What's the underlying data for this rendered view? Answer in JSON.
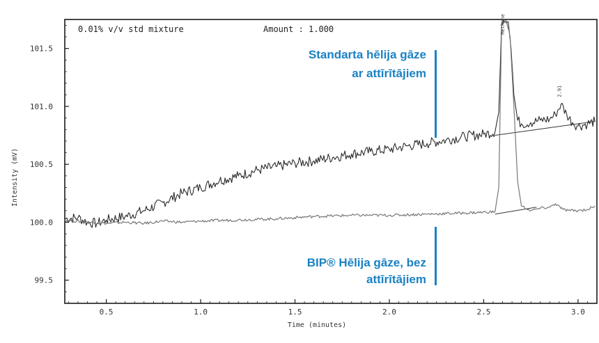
{
  "chart_data": {
    "type": "line",
    "title": "0.01% v/v std mixture",
    "amount_label": "Amount : 1.000",
    "xlabel": "Time (minutes)",
    "ylabel": "Intensity (mV)",
    "xlim": [
      0.28,
      3.1
    ],
    "ylim": [
      99.3,
      101.75
    ],
    "x_ticks": [
      {
        "value": 0.5,
        "label": "0.5"
      },
      {
        "value": 1.0,
        "label": "1.0"
      },
      {
        "value": 1.5,
        "label": "1.5"
      },
      {
        "value": 2.0,
        "label": "2.0"
      },
      {
        "value": 2.5,
        "label": "2.5"
      },
      {
        "value": 3.0,
        "label": "3.0"
      }
    ],
    "y_ticks": [
      {
        "value": 99.5,
        "label": "99.5"
      },
      {
        "value": 100.0,
        "label": "100.0"
      },
      {
        "value": 100.5,
        "label": "100.5"
      },
      {
        "value": 101.0,
        "label": "101.0"
      },
      {
        "value": 101.5,
        "label": "101.5"
      }
    ],
    "peak_labels": [
      {
        "label": "Methane",
        "x": 2.61,
        "y": 101.62
      },
      {
        "label": "2.91",
        "x": 2.91,
        "y": 101.08
      }
    ],
    "series": [
      {
        "name": "Standarta hēlija gāze ar attīrītājiem",
        "color": "#2a2a2a",
        "x": [
          0.28,
          0.35,
          0.4,
          0.45,
          0.5,
          0.6,
          0.7,
          0.8,
          0.9,
          1.0,
          1.1,
          1.2,
          1.3,
          1.4,
          1.5,
          1.6,
          1.7,
          1.8,
          1.9,
          2.0,
          2.1,
          2.2,
          2.3,
          2.4,
          2.5,
          2.56,
          2.58,
          2.595,
          2.605,
          2.62,
          2.63,
          2.645,
          2.66,
          2.68,
          2.7,
          2.75,
          2.8,
          2.85,
          2.88,
          2.91,
          2.94,
          2.97,
          3.0,
          3.05,
          3.09
        ],
        "y": [
          100.03,
          100.04,
          100.0,
          99.99,
          100.02,
          100.05,
          100.1,
          100.17,
          100.25,
          100.3,
          100.36,
          100.4,
          100.45,
          100.48,
          100.51,
          100.53,
          100.56,
          100.59,
          100.61,
          100.63,
          100.66,
          100.68,
          100.71,
          100.74,
          100.76,
          100.78,
          100.95,
          101.72,
          101.74,
          101.72,
          101.73,
          101.5,
          101.1,
          100.88,
          100.85,
          100.86,
          100.88,
          100.89,
          100.93,
          101.02,
          100.93,
          100.86,
          100.83,
          100.85,
          100.87
        ]
      },
      {
        "name": "BIP® Hēlija gāze, bez attīrītājiem",
        "color": "#777777",
        "x": [
          0.28,
          0.4,
          0.5,
          0.6,
          0.7,
          0.8,
          0.9,
          1.0,
          1.2,
          1.4,
          1.6,
          1.8,
          2.0,
          2.2,
          2.4,
          2.56,
          2.58,
          2.595,
          2.62,
          2.64,
          2.66,
          2.68,
          2.7,
          2.75,
          2.8,
          2.85,
          2.88,
          2.92,
          2.96,
          3.0,
          3.05,
          3.09
        ],
        "y": [
          100.02,
          100.0,
          99.99,
          100.0,
          99.99,
          100.01,
          100.0,
          100.01,
          100.02,
          100.03,
          100.05,
          100.06,
          100.06,
          100.07,
          100.08,
          100.09,
          100.3,
          101.72,
          101.74,
          101.6,
          101.0,
          100.35,
          100.14,
          100.1,
          100.12,
          100.13,
          100.16,
          100.11,
          100.1,
          100.1,
          100.11,
          100.14
        ]
      }
    ],
    "baselines": [
      {
        "x": [
          2.56,
          3.09
        ],
        "y": [
          100.75,
          100.87
        ]
      },
      {
        "x": [
          2.56,
          2.78
        ],
        "y": [
          100.07,
          100.13
        ]
      }
    ],
    "annotations": [
      {
        "lines": [
          "Standarta hēlija gāze",
          "ar attīrītājiem"
        ],
        "color": "#1a82c4"
      },
      {
        "lines": [
          "BIP® Hēlija gāze, bez",
          "attīrītājiem"
        ],
        "color": "#1a82c4"
      }
    ]
  }
}
